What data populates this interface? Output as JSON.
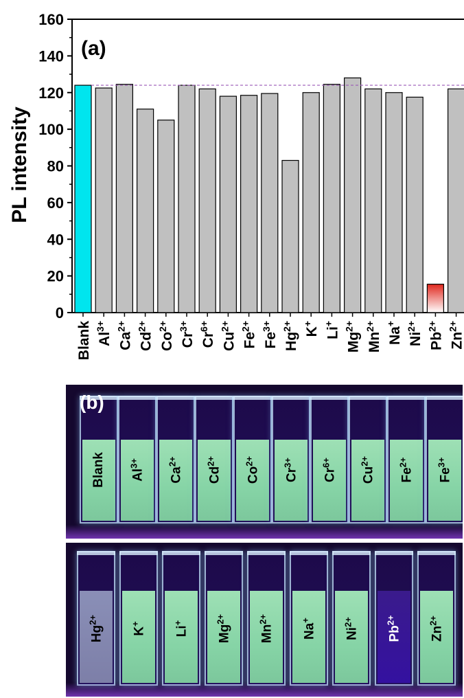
{
  "chart_data": {
    "type": "bar",
    "panel_label": "(a)",
    "ylabel": "PL intensity",
    "xlabel": "",
    "ylim": [
      0,
      160
    ],
    "yticks": [
      0,
      20,
      40,
      60,
      80,
      100,
      120,
      140,
      160
    ],
    "reference_line": 124,
    "categories": [
      {
        "base": "Blank",
        "sup": ""
      },
      {
        "base": "Al",
        "sup": "3+"
      },
      {
        "base": "Ca",
        "sup": "2+"
      },
      {
        "base": "Cd",
        "sup": "2+"
      },
      {
        "base": "Co",
        "sup": "2+"
      },
      {
        "base": "Cr",
        "sup": "3+"
      },
      {
        "base": "Cr",
        "sup": "6+"
      },
      {
        "base": "Cu",
        "sup": "2+"
      },
      {
        "base": "Fe",
        "sup": "2+"
      },
      {
        "base": "Fe",
        "sup": "3+"
      },
      {
        "base": "Hg",
        "sup": "2+"
      },
      {
        "base": "K",
        "sup": "+"
      },
      {
        "base": "Li",
        "sup": "+"
      },
      {
        "base": "Mg",
        "sup": "2+"
      },
      {
        "base": "Mn",
        "sup": "2+"
      },
      {
        "base": "Na",
        "sup": "+"
      },
      {
        "base": "Ni",
        "sup": "2+"
      },
      {
        "base": "Pb",
        "sup": "2+"
      },
      {
        "base": "Zn",
        "sup": "2+"
      }
    ],
    "values": [
      124,
      122.5,
      124.5,
      111,
      105,
      124,
      122,
      118,
      118.5,
      119.5,
      83,
      120,
      124.5,
      128,
      122,
      120,
      117.5,
      15.5,
      122
    ],
    "colors": {
      "blank": "#00e5ee",
      "default": "#c0c0c0",
      "lead": "#e0281e",
      "reference_line": "#9b59b6"
    }
  },
  "photo": {
    "panel_label": "(b)",
    "top_row": [
      {
        "base": "Blank",
        "sup": ""
      },
      {
        "base": "Al",
        "sup": "3+"
      },
      {
        "base": "Ca",
        "sup": "2+"
      },
      {
        "base": "Cd",
        "sup": "2+"
      },
      {
        "base": "Co",
        "sup": "2+"
      },
      {
        "base": "Cr",
        "sup": "3+"
      },
      {
        "base": "Cr",
        "sup": "6+"
      },
      {
        "base": "Cu",
        "sup": "2+"
      },
      {
        "base": "Fe",
        "sup": "2+"
      },
      {
        "base": "Fe",
        "sup": "3+"
      }
    ],
    "bottom_row": [
      {
        "base": "Hg",
        "sup": "2+",
        "state": "dim"
      },
      {
        "base": "K",
        "sup": "+",
        "state": "bright"
      },
      {
        "base": "Li",
        "sup": "+",
        "state": "bright"
      },
      {
        "base": "Mg",
        "sup": "2+",
        "state": "bright"
      },
      {
        "base": "Mn",
        "sup": "2+",
        "state": "bright"
      },
      {
        "base": "Na",
        "sup": "+",
        "state": "bright"
      },
      {
        "base": "Ni",
        "sup": "2+",
        "state": "bright"
      },
      {
        "base": "Pb",
        "sup": "2+",
        "state": "quenched"
      },
      {
        "base": "Zn",
        "sup": "2+",
        "state": "bright"
      }
    ]
  }
}
